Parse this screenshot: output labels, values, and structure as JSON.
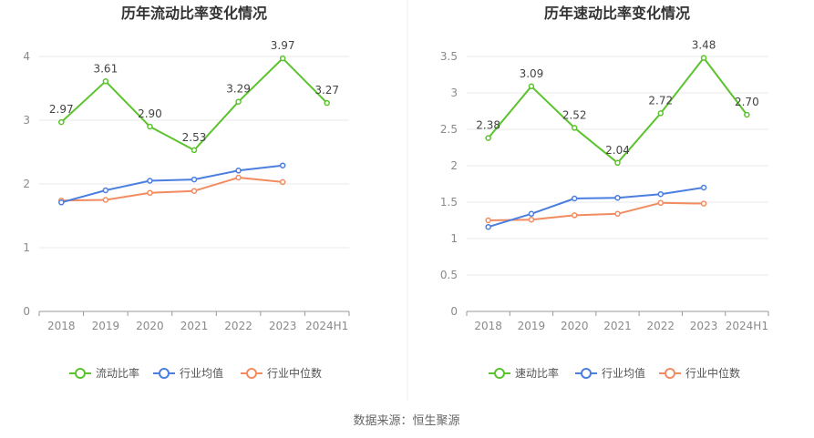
{
  "source": "数据来源：恒生聚源",
  "colors": {
    "ratio": "#5cc32e",
    "avg": "#4a7ee0",
    "median": "#f28c60",
    "grid": "#e8e8e8",
    "axis": "#999999"
  },
  "chart_data": [
    {
      "type": "line",
      "title": "历年流动比率变化情况",
      "categories": [
        "2018",
        "2019",
        "2020",
        "2021",
        "2022",
        "2023",
        "2024H1"
      ],
      "ylim": [
        0,
        4
      ],
      "yticks": [
        0,
        1,
        2,
        3,
        4
      ],
      "ytick_labels": [
        "0",
        "1",
        "2",
        "3",
        "4"
      ],
      "series": [
        {
          "name": "流动比率",
          "key": "ratio",
          "values": [
            2.97,
            3.61,
            2.9,
            2.53,
            3.29,
            3.97,
            3.27
          ],
          "labels": [
            "2.97",
            "3.61",
            "2.90",
            "2.53",
            "3.29",
            "3.97",
            "3.27"
          ]
        },
        {
          "name": "行业均值",
          "key": "avg",
          "values": [
            1.71,
            1.9,
            2.05,
            2.07,
            2.21,
            2.29,
            null
          ]
        },
        {
          "name": "行业中位数",
          "key": "median",
          "values": [
            1.74,
            1.75,
            1.86,
            1.89,
            2.1,
            2.03,
            null
          ]
        }
      ]
    },
    {
      "type": "line",
      "title": "历年速动比率变化情况",
      "categories": [
        "2018",
        "2019",
        "2020",
        "2021",
        "2022",
        "2023",
        "2024H1"
      ],
      "ylim": [
        0,
        3.5
      ],
      "yticks": [
        0,
        0.5,
        1,
        1.5,
        2,
        2.5,
        3,
        3.5
      ],
      "ytick_labels": [
        "0",
        "0.5",
        "1",
        "1.5",
        "2",
        "2.5",
        "3",
        "3.5"
      ],
      "series": [
        {
          "name": "速动比率",
          "key": "ratio",
          "values": [
            2.38,
            3.09,
            2.52,
            2.04,
            2.72,
            3.48,
            2.7
          ],
          "labels": [
            "2.38",
            "3.09",
            "2.52",
            "2.04",
            "2.72",
            "3.48",
            "2.70"
          ]
        },
        {
          "name": "行业均值",
          "key": "avg",
          "values": [
            1.16,
            1.34,
            1.55,
            1.56,
            1.61,
            1.7,
            null
          ]
        },
        {
          "name": "行业中位数",
          "key": "median",
          "values": [
            1.25,
            1.26,
            1.32,
            1.34,
            1.49,
            1.48,
            null
          ]
        }
      ]
    }
  ]
}
